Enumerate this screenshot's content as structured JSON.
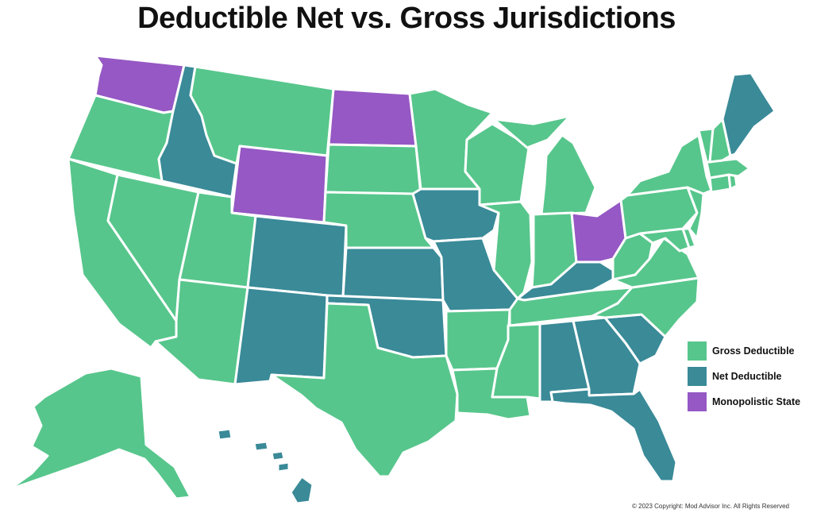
{
  "title": "Deductible Net vs. Gross Jurisdictions",
  "categories": {
    "gross": {
      "label": "Gross Deductible",
      "color": "#57c68c"
    },
    "net": {
      "label": "Net Deductible",
      "color": "#3a8a98"
    },
    "mono": {
      "label": "Monopolistic State",
      "color": "#9558c4"
    }
  },
  "legend": [
    "gross",
    "net",
    "mono"
  ],
  "states": {
    "WA": "mono",
    "OR": "gross",
    "CA": "gross",
    "ID": "net",
    "NV": "gross",
    "MT": "gross",
    "WY": "mono",
    "UT": "gross",
    "AZ": "gross",
    "CO": "net",
    "NM": "net",
    "ND": "mono",
    "SD": "gross",
    "NE": "gross",
    "KS": "net",
    "OK": "net",
    "TX": "gross",
    "MN": "gross",
    "IA": "net",
    "MO": "net",
    "AR": "gross",
    "LA": "gross",
    "WI": "gross",
    "IL": "gross",
    "MI": "gross",
    "IN": "gross",
    "OH": "mono",
    "KY": "net",
    "TN": "gross",
    "MS": "gross",
    "AL": "net",
    "GA": "net",
    "FL": "net",
    "SC": "net",
    "NC": "gross",
    "VA": "gross",
    "WV": "gross",
    "MD": "gross",
    "DE": "gross",
    "PA": "gross",
    "NJ": "gross",
    "NY": "gross",
    "CT": "gross",
    "RI": "gross",
    "MA": "gross",
    "VT": "gross",
    "NH": "gross",
    "ME": "net",
    "AK": "gross",
    "HI": "net"
  },
  "copyright": "© 2023 Copyright: Mod Advisor Inc. All Rights Reserved"
}
